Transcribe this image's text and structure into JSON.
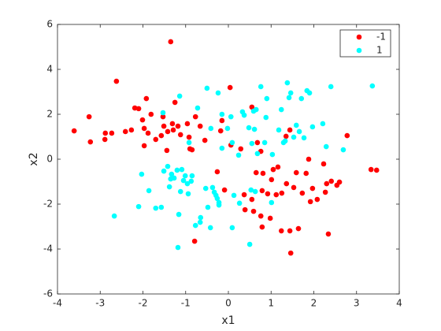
{
  "chart_data": {
    "type": "scatter",
    "xlabel": "x1",
    "ylabel": "x2",
    "xlim": [
      -4,
      4
    ],
    "ylim": [
      -6,
      6
    ],
    "xticks": [
      -4,
      -3,
      -2,
      -1,
      0,
      1,
      2,
      3,
      4
    ],
    "yticks": [
      -6,
      -4,
      -2,
      0,
      2,
      4,
      6
    ],
    "legend_position": "top-right",
    "series": [
      {
        "name": "-1",
        "color": "#ff0000",
        "x": [
          -1.35,
          -2.62,
          -3.61,
          -3.26,
          -3.23,
          -2.88,
          -2.73,
          -2.89,
          -2.41,
          -2.27,
          -2.19,
          -2.1,
          -1.92,
          -2.01,
          -1.81,
          -1.97,
          -1.88,
          -1.97,
          -1.7,
          -1.57,
          -1.51,
          -1.53,
          -1.42,
          -1.44,
          -1.31,
          -1.29,
          -1.18,
          -1.25,
          -1.12,
          -0.96,
          -0.92,
          -0.85,
          -0.77,
          -0.9,
          -0.55,
          -0.66,
          -0.18,
          -0.15,
          0.04,
          0.06,
          0.29,
          0.55,
          0.68,
          -0.26,
          -0.09,
          0.37,
          0.39,
          0.55,
          0.59,
          0.65,
          0.81,
          0.76,
          0.79,
          0.79,
          0.92,
          1.01,
          0.98,
          1.05,
          1.12,
          1.16,
          1.25,
          1.24,
          1.36,
          1.44,
          1.46,
          1.53,
          1.59,
          1.64,
          1.73,
          1.82,
          1.92,
          1.88,
          1.97,
          2.08,
          2.23,
          2.3,
          2.34,
          2.27,
          2.41,
          2.54,
          2.6,
          2.78,
          3.34,
          3.47,
          -0.79,
          1.35,
          1.44,
          0.76
        ],
        "values": [
          5.23,
          3.47,
          1.26,
          1.89,
          0.77,
          1.16,
          1.16,
          0.88,
          1.23,
          1.3,
          2.28,
          2.25,
          2.7,
          1.75,
          2.0,
          1.37,
          1.16,
          0.6,
          0.88,
          1.05,
          1.47,
          1.89,
          1.23,
          0.39,
          1.58,
          1.3,
          1.47,
          2.53,
          1.09,
          1.58,
          0.98,
          0.42,
          1.89,
          0.46,
          0.84,
          1.47,
          1.26,
          1.72,
          3.19,
          0.63,
          0.46,
          2.32,
          0.74,
          -0.56,
          -1.37,
          -1.58,
          -2.25,
          -1.79,
          -2.32,
          -0.6,
          -0.63,
          -2.53,
          -3.02,
          -1.4,
          -1.54,
          -0.91,
          -2.63,
          -0.46,
          -1.58,
          -0.35,
          -1.51,
          -3.19,
          -1.09,
          -3.19,
          -4.18,
          -1.26,
          -0.6,
          -3.09,
          -1.51,
          -0.63,
          -1.89,
          0.0,
          -1.3,
          -1.79,
          -0.21,
          -1.09,
          -3.33,
          -1.47,
          -0.98,
          -1.16,
          -1.02,
          1.05,
          -0.46,
          -0.49,
          -3.65,
          1.02,
          1.3,
          0.35
        ]
      },
      {
        "name": "1",
        "color": "#00ffff",
        "x": [
          -2.67,
          -2.03,
          -2.1,
          -1.86,
          -1.7,
          -1.57,
          -1.53,
          -1.51,
          -1.42,
          -1.38,
          -1.33,
          -1.35,
          -1.27,
          -1.2,
          -1.12,
          -1.09,
          -1.05,
          -1.01,
          -0.96,
          -0.94,
          -0.87,
          -0.85,
          -1.16,
          -1.18,
          -1.14,
          -0.92,
          -0.77,
          -0.66,
          -0.65,
          -0.53,
          -0.48,
          -0.37,
          -0.33,
          -0.29,
          -0.26,
          -0.22,
          -0.42,
          -0.22,
          -0.5,
          -0.72,
          -0.41,
          -0.24,
          -0.15,
          -0.02,
          0.09,
          0.06,
          -0.15,
          0.24,
          0.13,
          0.26,
          0.09,
          0.37,
          0.33,
          0.48,
          0.55,
          0.59,
          0.65,
          0.61,
          0.68,
          0.76,
          0.88,
          0.9,
          0.85,
          0.53,
          0.63,
          0.5,
          1.01,
          1.03,
          1.18,
          1.24,
          1.29,
          1.33,
          1.38,
          1.42,
          1.46,
          1.59,
          1.53,
          1.66,
          1.71,
          1.77,
          1.84,
          1.9,
          1.97,
          2.21,
          2.29,
          2.4,
          2.69,
          3.37
        ],
        "values": [
          -2.53,
          -0.67,
          -2.11,
          -1.4,
          -2.18,
          -2.14,
          2.07,
          -0.53,
          -0.32,
          -1.23,
          -0.67,
          -0.88,
          -0.84,
          -0.49,
          -1.44,
          -0.46,
          -0.95,
          -0.74,
          -1.09,
          -1.54,
          -0.98,
          -0.74,
          -2.46,
          -3.93,
          2.81,
          0.74,
          -2.95,
          -2.81,
          -2.6,
          -1.3,
          -2.14,
          -1.26,
          -1.47,
          -1.61,
          -1.75,
          -1.93,
          -3.05,
          -2.04,
          3.16,
          2.28,
          1.37,
          2.95,
          2.0,
          1.37,
          0.74,
          1.89,
          0.49,
          0.18,
          -1.61,
          -1.96,
          -3.05,
          1.96,
          2.11,
          1.4,
          0.7,
          2.14,
          2.21,
          1.33,
          0.25,
          3.23,
          1.86,
          2.7,
          0.74,
          -1.37,
          -1.44,
          -3.79,
          -1.93,
          0.21,
          1.3,
          2.21,
          0.74,
          0.81,
          3.4,
          2.74,
          2.95,
          1.51,
          0.98,
          1.23,
          2.7,
          0.95,
          3.05,
          2.95,
          1.44,
          1.58,
          0.56,
          3.23,
          0.42,
          3.26
        ]
      }
    ]
  }
}
